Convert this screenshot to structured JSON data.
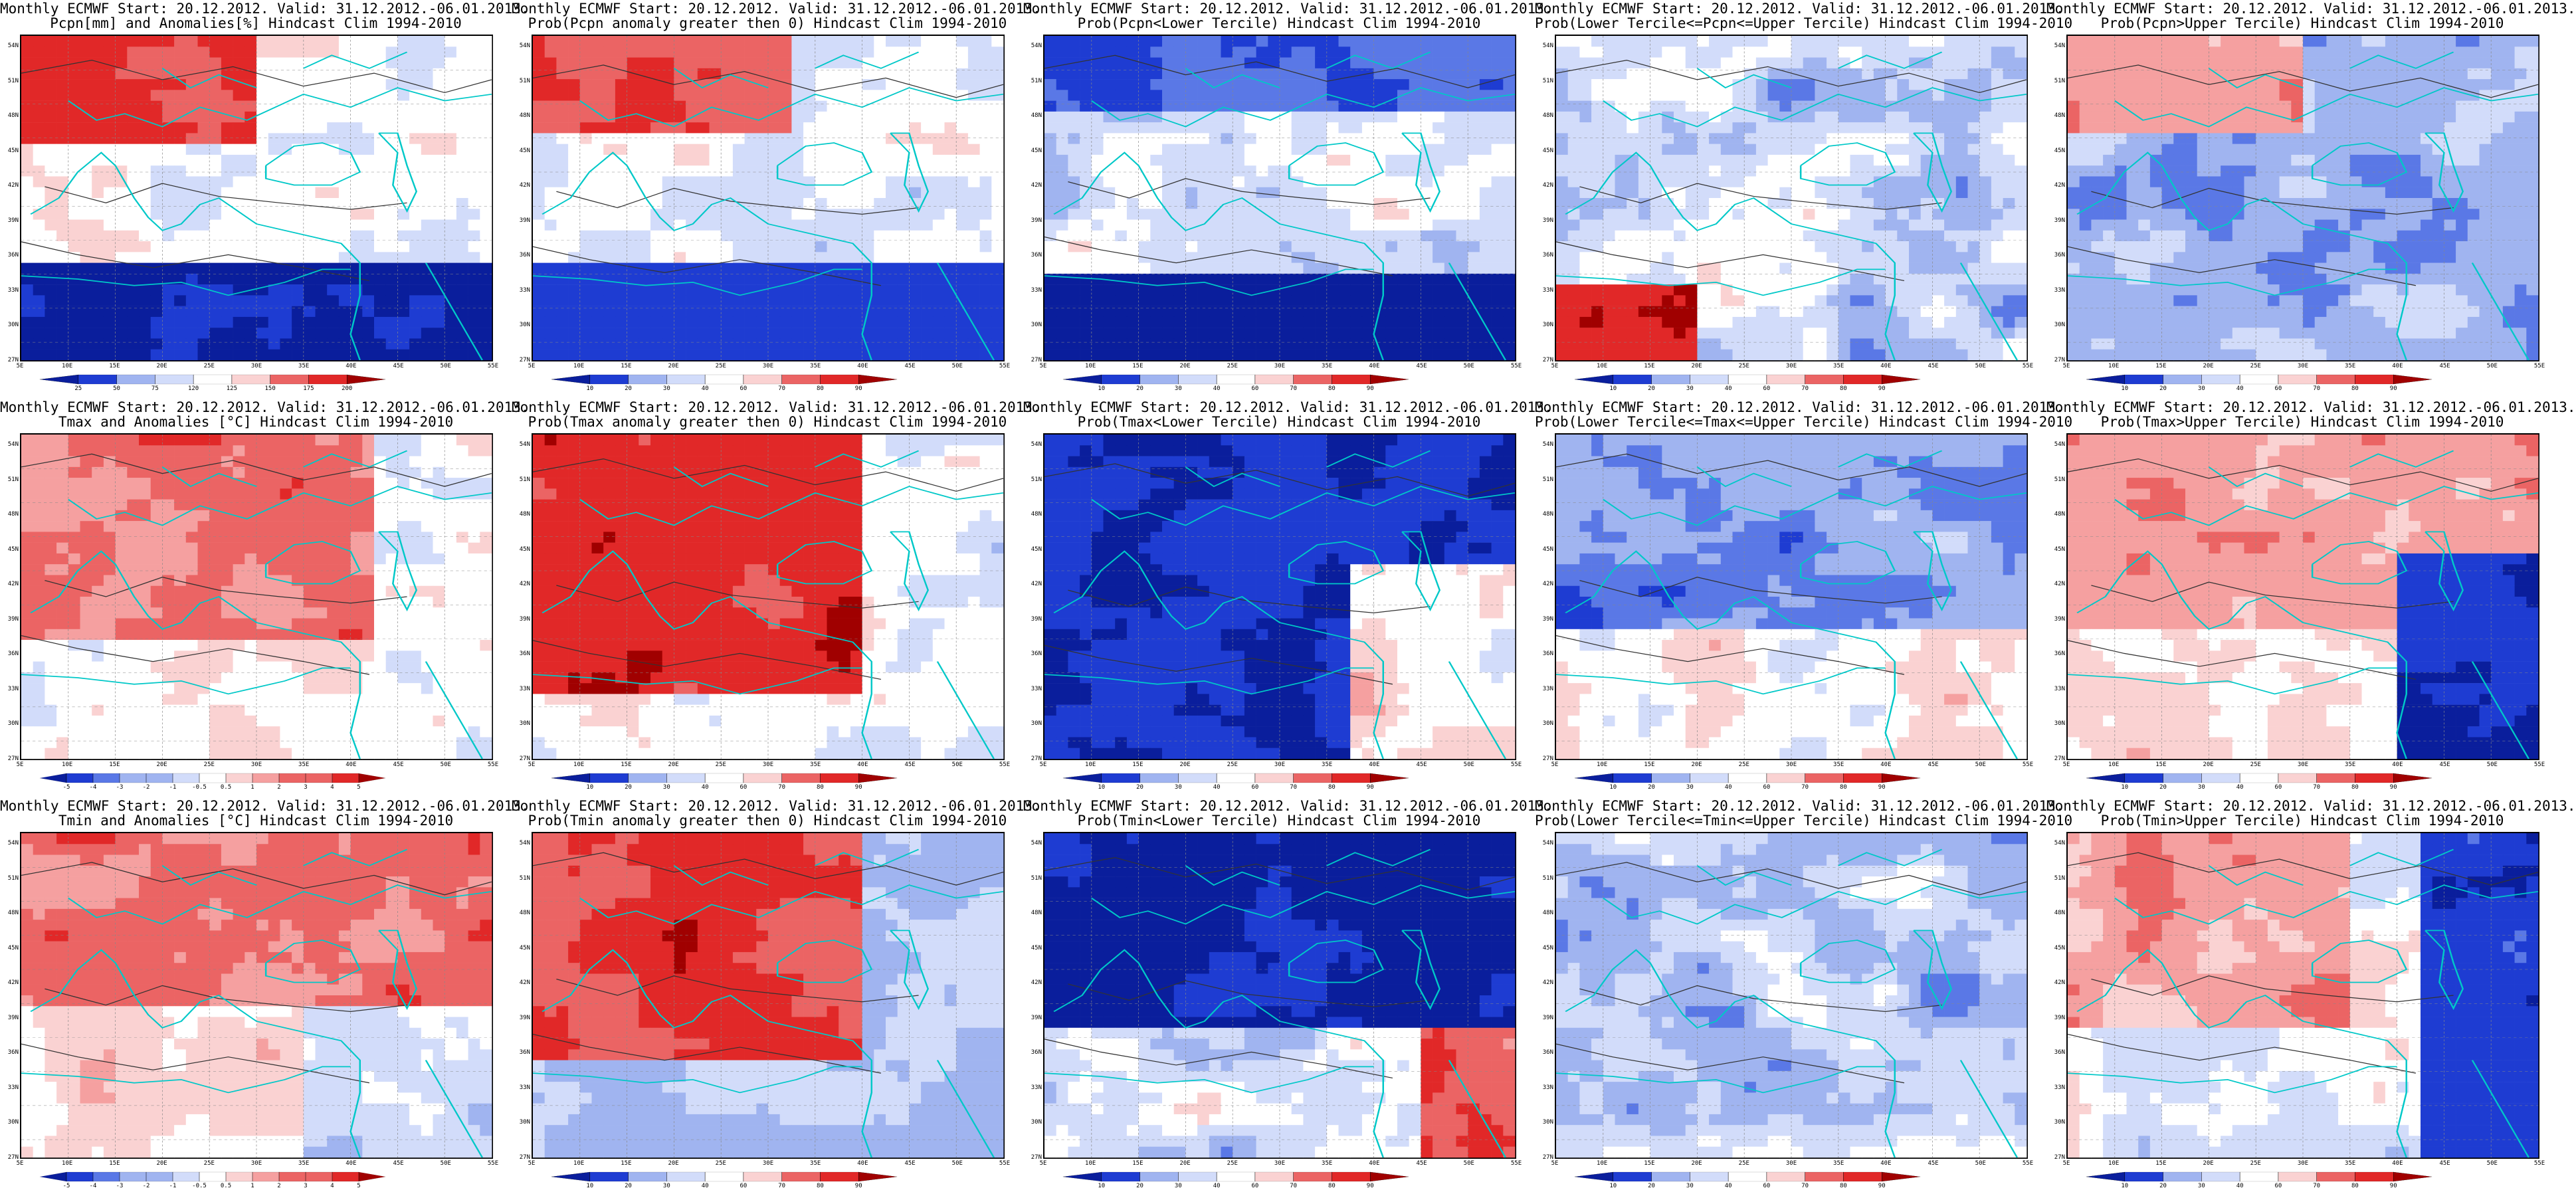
{
  "colors": {
    "deep_blue": "#0a1e9c",
    "blue": "#1e3cd2",
    "mid_blue": "#5a78e6",
    "light_blue": "#a0b4f0",
    "pale_blue": "#d2dcfa",
    "white": "#ffffff",
    "pale_red": "#fad2d2",
    "light_red": "#f5a0a0",
    "mid_red": "#eb6464",
    "red": "#e12828",
    "dark_red": "#a00000",
    "coast": "#00c8c8",
    "contour": "#333333"
  },
  "axes": {
    "lat_labels": [
      "54N",
      "51N",
      "48N",
      "45N",
      "42N",
      "39N",
      "36N",
      "33N",
      "30N",
      "27N"
    ],
    "lon_labels": [
      "5E",
      "10E",
      "15E",
      "20E",
      "25E",
      "30E",
      "35E",
      "40E",
      "45E",
      "50E",
      "55E"
    ]
  },
  "colorbar_labels": {
    "precip_anom": [
      "25",
      "50",
      "75",
      "120",
      "125",
      "150",
      "175",
      "200"
    ],
    "temp_anom": [
      "-5",
      "-4",
      "-3",
      "-2",
      "-1",
      "-0.5",
      "0.5",
      "1",
      "2",
      "3",
      "4",
      "5"
    ],
    "prob": [
      "10",
      "20",
      "30",
      "40",
      "60",
      "70",
      "80",
      "90"
    ]
  },
  "panels": [
    {
      "line1": "Monthly ECMWF Start: 20.12.2012. Valid: 31.12.2012.-06.01.2013.",
      "line2": "Pcpn[mm] and Anomalies[%] Hindcast Clim 1994-2010",
      "field": "precip",
      "bar": "precip_anom"
    },
    {
      "line1": "Monthly ECMWF Start: 20.12.2012. Valid: 31.12.2012.-06.01.2013.",
      "line2": "Prob(Pcpn anomaly greater then 0) Hindcast Clim 1994-2010",
      "field": "precip_prob",
      "bar": "prob"
    },
    {
      "line1": "Monthly ECMWF Start: 20.12.2012. Valid: 31.12.2012.-06.01.2013.",
      "line2": "Prob(Pcpn<Lower Tercile) Hindcast Clim 1994-2010",
      "field": "precip_lower",
      "bar": "prob"
    },
    {
      "line1": "Monthly ECMWF Start: 20.12.2012. Valid: 31.12.2012.-06.01.2013.",
      "line2": "Prob(Lower Tercile<=Pcpn<=Upper Tercile) Hindcast Clim 1994-2010",
      "field": "precip_mid",
      "bar": "prob"
    },
    {
      "line1": "Monthly ECMWF Start: 20.12.2012. Valid: 31.12.2012.-06.01.2013.",
      "line2": "Prob(Pcpn>Upper Tercile) Hindcast Clim 1994-2010",
      "field": "precip_upper",
      "bar": "prob"
    },
    {
      "line1": "Monthly ECMWF Start: 20.12.2012. Valid: 31.12.2012.-06.01.2013.",
      "line2": "Tmax and Anomalies [°C] Hindcast Clim 1994-2010",
      "field": "tmax",
      "bar": "temp_anom"
    },
    {
      "line1": "Monthly ECMWF Start: 20.12.2012. Valid: 31.12.2012.-06.01.2013.",
      "line2": "Prob(Tmax anomaly greater then 0) Hindcast Clim 1994-2010",
      "field": "tmax_prob",
      "bar": "prob"
    },
    {
      "line1": "Monthly ECMWF Start: 20.12.2012. Valid: 31.12.2012.-06.01.2013.",
      "line2": "Prob(Tmax<Lower Tercile) Hindcast Clim 1994-2010",
      "field": "tmax_lower",
      "bar": "prob"
    },
    {
      "line1": "Monthly ECMWF Start: 20.12.2012. Valid: 31.12.2012.-06.01.2013.",
      "line2": "Prob(Lower Tercile<=Tmax<=Upper Tercile) Hindcast Clim 1994-2010",
      "field": "tmax_mid",
      "bar": "prob"
    },
    {
      "line1": "Monthly ECMWF Start: 20.12.2012. Valid: 31.12.2012.-06.01.2013.",
      "line2": "Prob(Tmax>Upper Tercile) Hindcast Clim 1994-2010",
      "field": "tmax_upper",
      "bar": "prob"
    },
    {
      "line1": "Monthly ECMWF Start: 20.12.2012. Valid: 31.12.2012.-06.01.2013.",
      "line2": "Tmin and Anomalies [°C] Hindcast Clim 1994-2010",
      "field": "tmin",
      "bar": "temp_anom"
    },
    {
      "line1": "Monthly ECMWF Start: 20.12.2012. Valid: 31.12.2012.-06.01.2013.",
      "line2": "Prob(Tmin anomaly greater then 0) Hindcast Clim 1994-2010",
      "field": "tmin_prob",
      "bar": "prob"
    },
    {
      "line1": "Monthly ECMWF Start: 20.12.2012. Valid: 31.12.2012.-06.01.2013.",
      "line2": "Prob(Tmin<Lower Tercile) Hindcast Clim 1994-2010",
      "field": "tmin_lower",
      "bar": "prob"
    },
    {
      "line1": "Monthly ECMWF Start: 20.12.2012. Valid: 31.12.2012.-06.01.2013.",
      "line2": "Prob(Lower Tercile<=Tmin<=Upper Tercile) Hindcast Clim 1994-2010",
      "field": "tmin_mid",
      "bar": "prob"
    },
    {
      "line1": "Monthly ECMWF Start: 20.12.2012. Valid: 31.12.2012.-06.01.2013.",
      "line2": "Prob(Tmin>Upper Tercile) Hindcast Clim 1994-2010",
      "field": "tmin_upper",
      "bar": "prob"
    }
  ]
}
